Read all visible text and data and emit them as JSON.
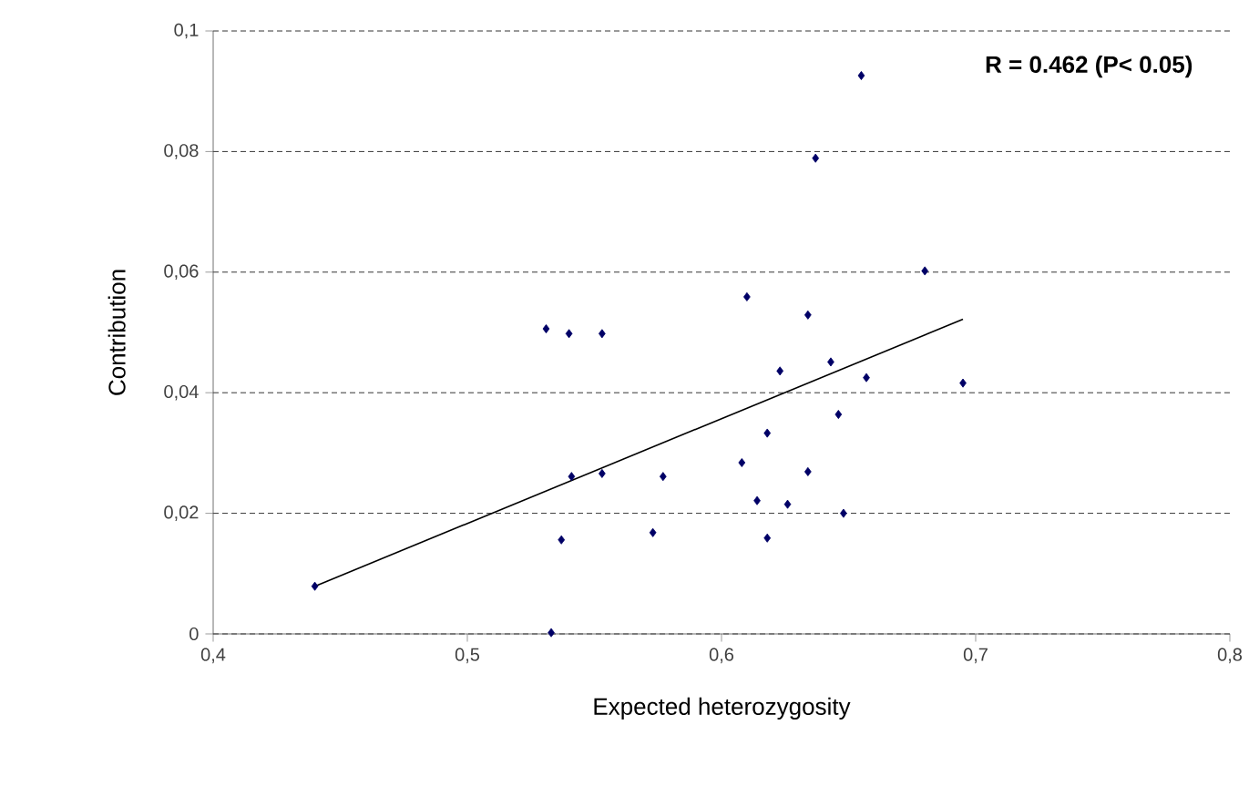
{
  "chart_data": {
    "type": "scatter",
    "xlabel": "Expected heterozygosity",
    "ylabel": "Contribution",
    "xlim": [
      0.4,
      0.8
    ],
    "ylim": [
      0,
      0.1
    ],
    "xticks": [
      {
        "value": 0.4,
        "label": "0,4"
      },
      {
        "value": 0.5,
        "label": "0,5"
      },
      {
        "value": 0.6,
        "label": "0,6"
      },
      {
        "value": 0.7,
        "label": "0,7"
      },
      {
        "value": 0.8,
        "label": "0,8"
      }
    ],
    "yticks": [
      {
        "value": 0,
        "label": "0"
      },
      {
        "value": 0.02,
        "label": "0,02"
      },
      {
        "value": 0.04,
        "label": "0,04"
      },
      {
        "value": 0.06,
        "label": "0,06"
      },
      {
        "value": 0.08,
        "label": "0,08"
      },
      {
        "value": 0.1,
        "label": "0,1"
      }
    ],
    "grid": "y",
    "marker": "diamond",
    "annotations": [
      "R = 0.462 (P< 0.05)"
    ],
    "series": [
      {
        "color": "#000066",
        "x": [
          0.44,
          0.531,
          0.54,
          0.553,
          0.541,
          0.553,
          0.577,
          0.537,
          0.573,
          0.533,
          0.655,
          0.637,
          0.68,
          0.61,
          0.634,
          0.623,
          0.643,
          0.657,
          0.695,
          0.646,
          0.618,
          0.608,
          0.634,
          0.614,
          0.626,
          0.648,
          0.618
        ],
        "values": [
          0.0079,
          0.0506,
          0.0498,
          0.0498,
          0.0261,
          0.0266,
          0.0261,
          0.0156,
          0.0168,
          0.0002,
          0.0926,
          0.0789,
          0.0602,
          0.0559,
          0.0529,
          0.0436,
          0.0451,
          0.0425,
          0.0416,
          0.0364,
          0.0333,
          0.0284,
          0.0269,
          0.0221,
          0.0215,
          0.02,
          0.0159
        ]
      },
      {
        "type": "line",
        "color": "#000000",
        "marker": "none",
        "x": [
          0.44,
          0.695
        ],
        "values": [
          0.0079,
          0.0522
        ]
      }
    ]
  }
}
